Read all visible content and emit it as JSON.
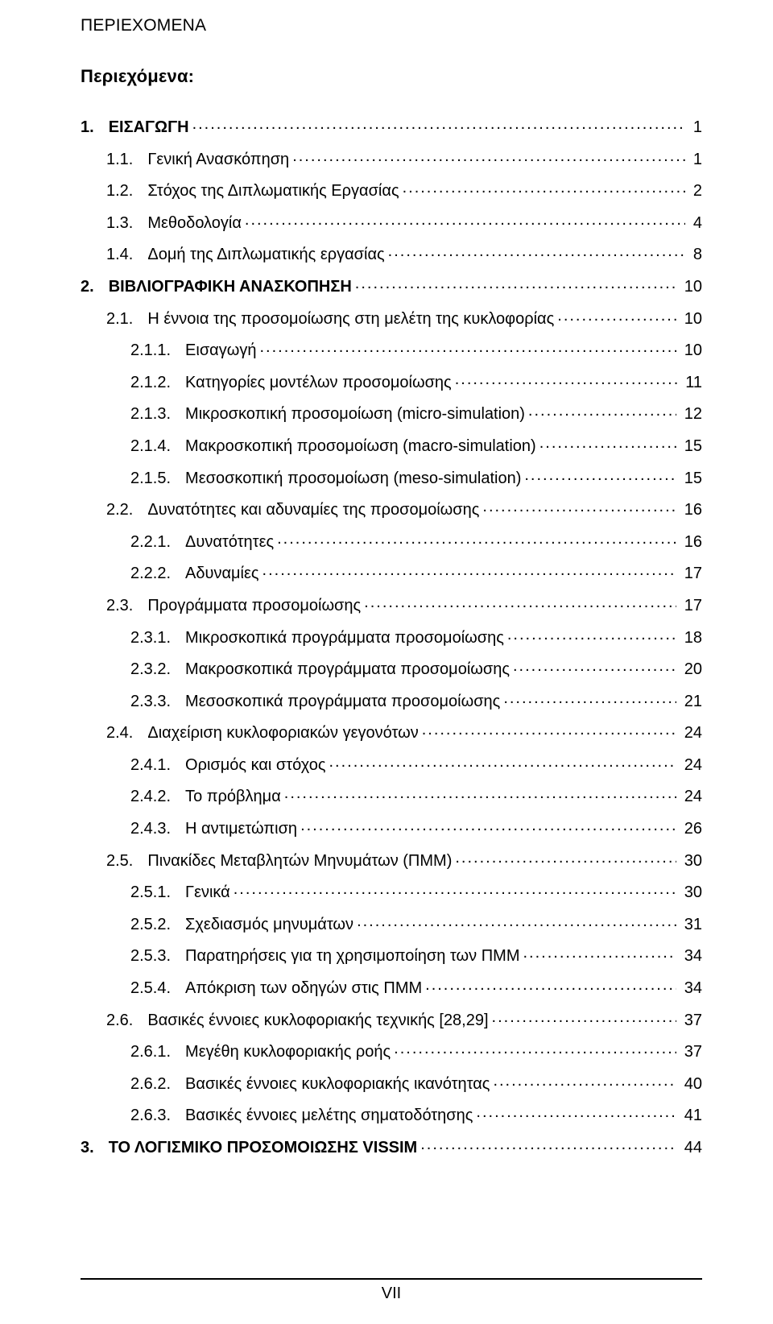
{
  "header": "ΠΕΡΙΕΧΟΜΕΝΑ",
  "title": "Περιεχόμενα:",
  "footerPage": "VII",
  "entries": [
    {
      "level": 1,
      "num": "1.",
      "label": "ΕΙΣΑΓΩΓΗ",
      "page": "1"
    },
    {
      "level": 2,
      "num": "1.1.",
      "label": "Γενική Ανασκόπηση",
      "page": "1"
    },
    {
      "level": 2,
      "num": "1.2.",
      "label": "Στόχος της Διπλωματικής Εργασίας",
      "page": "2"
    },
    {
      "level": 2,
      "num": "1.3.",
      "label": "Μεθοδολογία",
      "page": "4"
    },
    {
      "level": 2,
      "num": "1.4.",
      "label": "Δομή της Διπλωματικής εργασίας",
      "page": "8"
    },
    {
      "level": 1,
      "num": "2.",
      "label": "ΒΙΒΛΙΟΓΡΑΦΙΚΗ ΑΝΑΣΚΟΠΗΣΗ",
      "page": "10"
    },
    {
      "level": 2,
      "num": "2.1.",
      "label": "Η έννοια της προσομοίωσης στη μελέτη της κυκλοφορίας",
      "page": "10"
    },
    {
      "level": 3,
      "num": "2.1.1.",
      "label": "Εισαγωγή",
      "page": "10"
    },
    {
      "level": 3,
      "num": "2.1.2.",
      "label": "Κατηγορίες μοντέλων προσομοίωσης",
      "page": "11"
    },
    {
      "level": 3,
      "num": "2.1.3.",
      "label": "Μικροσκοπική προσομοίωση (micro-simulation)",
      "page": "12"
    },
    {
      "level": 3,
      "num": "2.1.4.",
      "label": "Μακροσκοπική προσομοίωση (macro-simulation)",
      "page": "15"
    },
    {
      "level": 3,
      "num": "2.1.5.",
      "label": "Μεσοσκοπική προσομοίωση (meso-simulation)",
      "page": "15"
    },
    {
      "level": 2,
      "num": "2.2.",
      "label": "Δυνατότητες και αδυναμίες της προσομοίωσης",
      "page": "16"
    },
    {
      "level": 3,
      "num": "2.2.1.",
      "label": "Δυνατότητες",
      "page": "16"
    },
    {
      "level": 3,
      "num": "2.2.2.",
      "label": "Αδυναμίες",
      "page": "17"
    },
    {
      "level": 2,
      "num": "2.3.",
      "label": "Προγράμματα προσομοίωσης",
      "page": "17"
    },
    {
      "level": 3,
      "num": "2.3.1.",
      "label": "Μικροσκοπικά προγράμματα προσομοίωσης",
      "page": "18"
    },
    {
      "level": 3,
      "num": "2.3.2.",
      "label": "Μακροσκοπικά προγράμματα προσομοίωσης",
      "page": "20"
    },
    {
      "level": 3,
      "num": "2.3.3.",
      "label": "Μεσοσκοπικά προγράμματα προσομοίωσης",
      "page": "21"
    },
    {
      "level": 2,
      "num": "2.4.",
      "label": "Διαχείριση κυκλοφοριακών γεγονότων",
      "page": "24"
    },
    {
      "level": 3,
      "num": "2.4.1.",
      "label": "Ορισμός και στόχος",
      "page": "24"
    },
    {
      "level": 3,
      "num": "2.4.2.",
      "label": "Το πρόβλημα",
      "page": "24"
    },
    {
      "level": 3,
      "num": "2.4.3.",
      "label": "Η αντιμετώπιση",
      "page": "26"
    },
    {
      "level": 2,
      "num": "2.5.",
      "label": "Πινακίδες Μεταβλητών Μηνυμάτων (ΠΜΜ)",
      "page": "30"
    },
    {
      "level": 3,
      "num": "2.5.1.",
      "label": "Γενικά",
      "page": "30"
    },
    {
      "level": 3,
      "num": "2.5.2.",
      "label": "Σχεδιασμός μηνυμάτων",
      "page": "31"
    },
    {
      "level": 3,
      "num": "2.5.3.",
      "label": "Παρατηρήσεις για τη χρησιμοποίηση των ΠΜΜ",
      "page": "34"
    },
    {
      "level": 3,
      "num": "2.5.4.",
      "label": "Απόκριση των οδηγών στις ΠΜΜ",
      "page": "34"
    },
    {
      "level": 2,
      "num": "2.6.",
      "label": "Βασικές έννοιες κυκλοφοριακής τεχνικής [28,29]",
      "page": "37"
    },
    {
      "level": 3,
      "num": "2.6.1.",
      "label": "Μεγέθη κυκλοφοριακής ροής",
      "page": "37"
    },
    {
      "level": 3,
      "num": "2.6.2.",
      "label": "Βασικές έννοιες κυκλοφοριακής ικανότητας",
      "page": "40"
    },
    {
      "level": 3,
      "num": "2.6.3.",
      "label": "Βασικές έννοιες μελέτης σηματοδότησης",
      "page": "41"
    },
    {
      "level": 1,
      "num": "3.",
      "label": "ΤΟ ΛΟΓΙΣΜΙΚΟ ΠΡΟΣΟΜΟΙΩΣΗΣ VISSIM",
      "page": "44"
    }
  ]
}
